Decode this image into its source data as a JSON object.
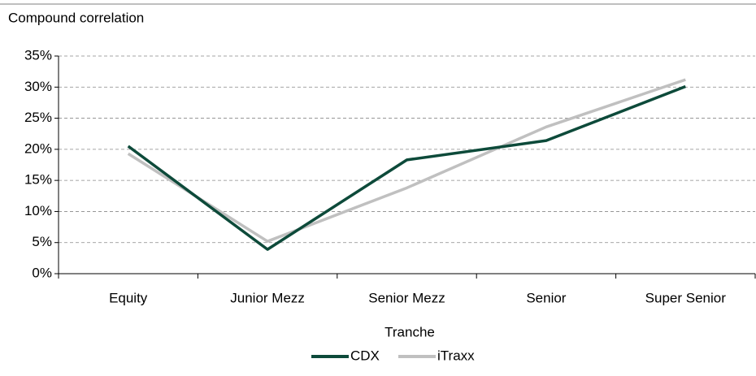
{
  "chart_data": {
    "type": "line",
    "title": "Compound correlation",
    "x_label": "Tranche",
    "categories": [
      "Equity",
      "Junior Mezz",
      "Senior Mezz",
      "Senior",
      "Super Senior"
    ],
    "series": [
      {
        "name": "CDX",
        "color": "#0d4a3a",
        "values": [
          20.5,
          3.9,
          18.3,
          21.4,
          30.1
        ]
      },
      {
        "name": "iTraxx",
        "color": "#c0c0c0",
        "values": [
          19.3,
          5.2,
          13.8,
          23.6,
          31.2
        ]
      }
    ],
    "ylim": [
      0,
      35
    ],
    "yticks": [
      {
        "value": 0,
        "label": "0%"
      },
      {
        "value": 5,
        "label": "5%"
      },
      {
        "value": 10,
        "label": "10%"
      },
      {
        "value": 15,
        "label": "15%"
      },
      {
        "value": 20,
        "label": "20%"
      },
      {
        "value": 25,
        "label": "25%"
      },
      {
        "value": 30,
        "label": "30%"
      },
      {
        "value": 35,
        "label": "35%"
      }
    ],
    "grid": true
  }
}
